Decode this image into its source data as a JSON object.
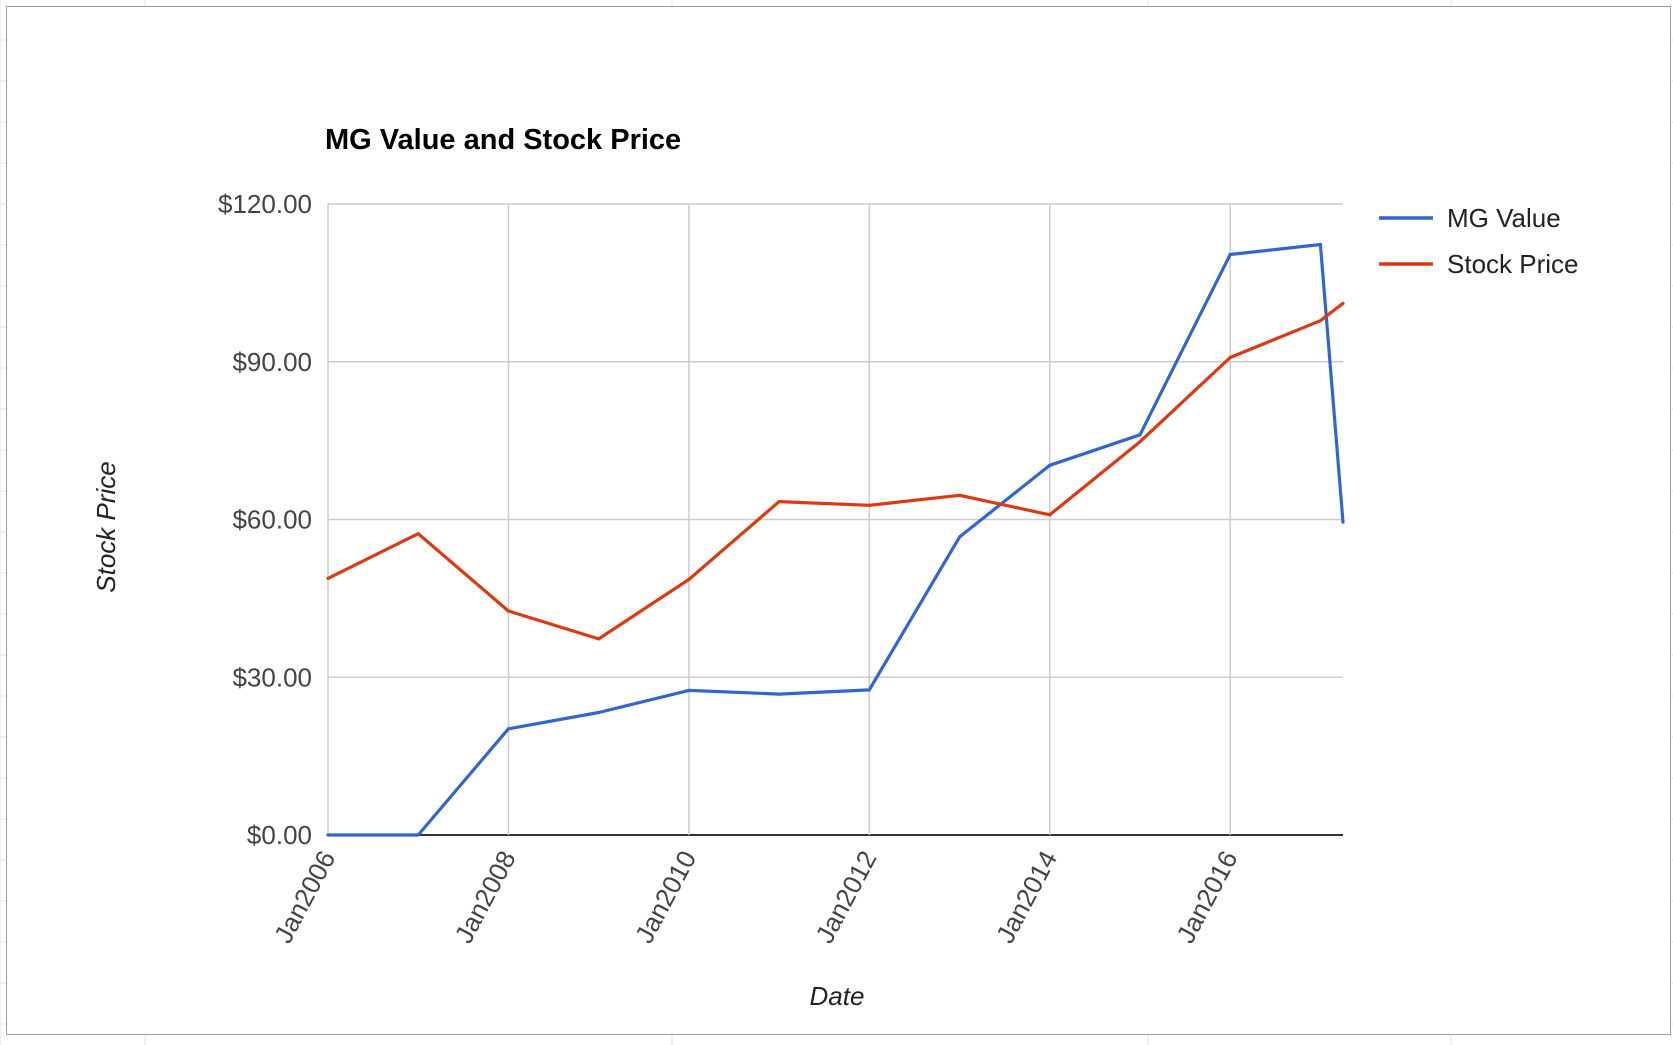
{
  "colors": {
    "background": "#ffffff",
    "gridline": "#cccccc",
    "baseline": "#333333",
    "frame": "#9e9e9e",
    "sheet_grid": "#e2e2e2"
  },
  "chart_data": {
    "type": "line",
    "title": "MG Value and Stock Price",
    "xlabel": "Date",
    "ylabel": "Stock Price",
    "x": [
      "2006-01",
      "2007-01",
      "2008-01",
      "2009-01",
      "2010-01",
      "2011-01",
      "2012-01",
      "2013-01",
      "2014-01",
      "2015-01",
      "2016-01",
      "2017-01",
      "2017-04"
    ],
    "xlim": [
      "2006-01",
      "2017-04"
    ],
    "x_ticks": [
      "2006-01",
      "2008-01",
      "2010-01",
      "2012-01",
      "2014-01",
      "2016-01"
    ],
    "x_tick_labels": [
      "Jan2006",
      "Jan2008",
      "Jan2010",
      "Jan2012",
      "Jan2014",
      "Jan2016"
    ],
    "ylim": [
      0,
      120
    ],
    "y_ticks": [
      0,
      30,
      60,
      90,
      120
    ],
    "y_tick_labels": [
      "$0.00",
      "$30.00",
      "$60.00",
      "$90.00",
      "$120.00"
    ],
    "grid": true,
    "legend_position": "right",
    "series": [
      {
        "name": "MG Value",
        "color": "#3366cc",
        "values": [
          0,
          0,
          20.2,
          23.3,
          27.5,
          26.8,
          27.6,
          56.7,
          70.3,
          76.1,
          110.4,
          112.3,
          59.5
        ]
      },
      {
        "name": "Stock Price",
        "color": "#dc3912",
        "values": [
          48.8,
          57.3,
          42.6,
          37.3,
          48.6,
          63.4,
          62.7,
          64.6,
          60.9,
          74.8,
          90.8,
          97.8,
          101.1
        ]
      }
    ]
  }
}
